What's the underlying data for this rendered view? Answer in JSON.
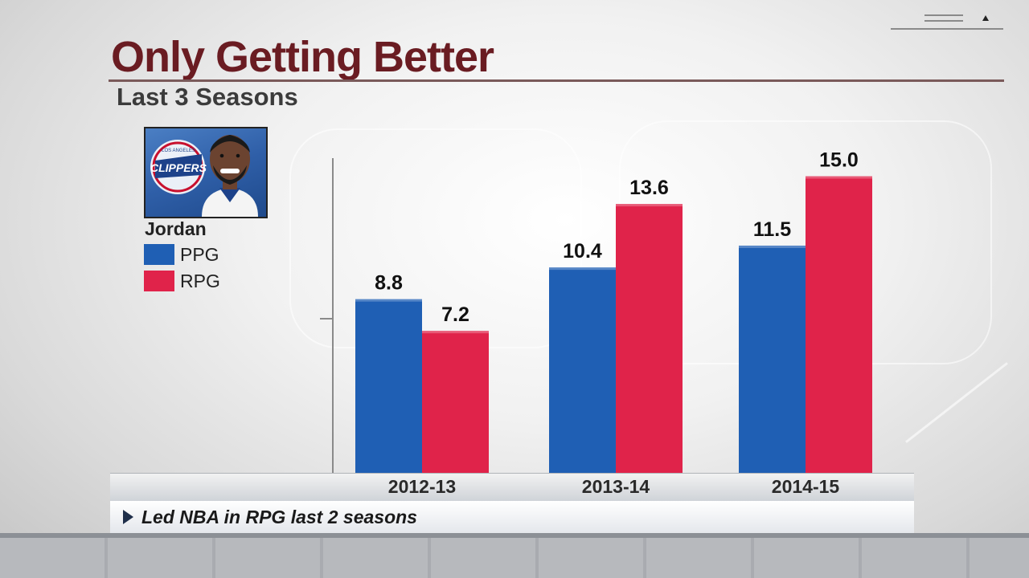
{
  "title": "Only Getting Better",
  "subtitle": "Last 3 Seasons",
  "player": {
    "name": "Jordan",
    "photo_icon": "player-headshot-icon",
    "team_logo_text": "CLIPPERS",
    "team_logo_small_text": "LOS ANGELES"
  },
  "legend": [
    {
      "label": "PPG",
      "color": "#1f5fb4"
    },
    {
      "label": "RPG",
      "color": "#e0234a"
    }
  ],
  "footnote": "Led NBA in RPG last 2 seasons",
  "chart_data": {
    "type": "bar",
    "categories": [
      "2012-13",
      "2013-14",
      "2014-15"
    ],
    "series": [
      {
        "name": "PPG",
        "values": [
          8.8,
          10.4,
          11.5
        ],
        "color": "#1f5fb4"
      },
      {
        "name": "RPG",
        "values": [
          7.2,
          13.6,
          15.0
        ],
        "color": "#e0234a"
      }
    ],
    "value_labels": [
      [
        "8.8",
        "10.4",
        "11.5"
      ],
      [
        "7.2",
        "13.6",
        "15.0"
      ]
    ],
    "ylim": [
      0,
      20
    ],
    "grid": false,
    "legend_position": "left"
  }
}
